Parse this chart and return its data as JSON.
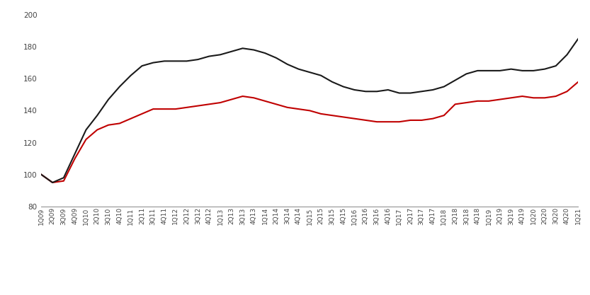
{
  "labels": [
    "1Q09",
    "2Q09",
    "3Q09",
    "4Q09",
    "1Q10",
    "2Q10",
    "3Q10",
    "4Q10",
    "1Q11",
    "2Q11",
    "3Q11",
    "4Q11",
    "1Q12",
    "2Q12",
    "3Q12",
    "4Q12",
    "1Q13",
    "2Q13",
    "3Q13",
    "4Q13",
    "1Q14",
    "2Q14",
    "3Q14",
    "4Q14",
    "1Q15",
    "2Q15",
    "3Q15",
    "4Q15",
    "1Q16",
    "2Q16",
    "3Q16",
    "4Q16",
    "1Q17",
    "2Q17",
    "3Q17",
    "4Q17",
    "1Q18",
    "2Q18",
    "3Q18",
    "4Q18",
    "1Q19",
    "2Q19",
    "3Q19",
    "4Q19",
    "1Q20",
    "2Q20",
    "3Q20",
    "4Q20",
    "1Q21"
  ],
  "non_landed": [
    100,
    95,
    96,
    110,
    122,
    128,
    131,
    132,
    135,
    138,
    141,
    141,
    141,
    142,
    143,
    144,
    145,
    147,
    149,
    148,
    146,
    144,
    142,
    141,
    140,
    138,
    137,
    136,
    135,
    134,
    133,
    133,
    133,
    134,
    134,
    135,
    137,
    144,
    145,
    146,
    146,
    147,
    148,
    149,
    148,
    148,
    149,
    152,
    158
  ],
  "landed": [
    100,
    95,
    98,
    113,
    128,
    137,
    147,
    155,
    162,
    168,
    170,
    171,
    171,
    171,
    172,
    174,
    175,
    177,
    179,
    178,
    176,
    173,
    169,
    166,
    164,
    162,
    158,
    155,
    153,
    152,
    152,
    153,
    151,
    151,
    152,
    153,
    155,
    159,
    163,
    165,
    165,
    165,
    166,
    165,
    165,
    166,
    168,
    175,
    185
  ],
  "non_landed_color": "#c00000",
  "landed_color": "#1a1a1a",
  "ylim": [
    80,
    200
  ],
  "yticks": [
    80,
    100,
    120,
    140,
    160,
    180,
    200
  ],
  "background_color": "#ffffff",
  "line_width": 1.5,
  "tick_label_fontsize": 6.5
}
